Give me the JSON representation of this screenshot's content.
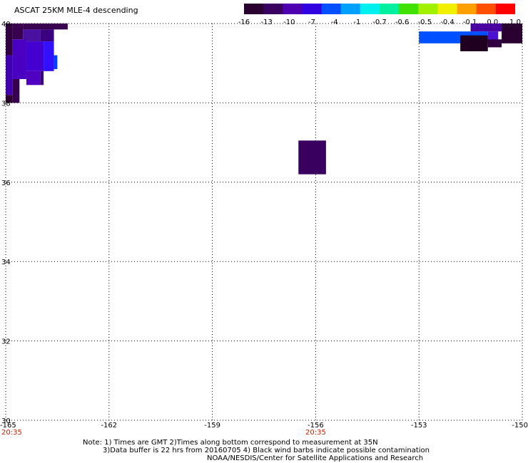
{
  "title": "ASCAT 25KM MLE-4 descending",
  "colorbar": {
    "labels": [
      "-16",
      "-13",
      "-10",
      "-7",
      "-4",
      "-1",
      "-0.7",
      "-0.6",
      "-0.5",
      "-0.4",
      "-0.1",
      "0.0",
      "1.0"
    ],
    "colors": [
      "#2a0030",
      "#3a0060",
      "#4e00b0",
      "#3000e0",
      "#0050ff",
      "#00a0ff",
      "#00f0f0",
      "#00f0a0",
      "#40e000",
      "#a0f000",
      "#f0f000",
      "#ffa000",
      "#ff5000",
      "#ff0000"
    ]
  },
  "map": {
    "lon_range": [
      -165,
      -150
    ],
    "lat_range": [
      30,
      40
    ],
    "lon_ticks": [
      "-165",
      "-162",
      "-159",
      "-156",
      "-153",
      "-150"
    ],
    "lat_ticks": [
      "40",
      "38",
      "36",
      "34",
      "32",
      "30"
    ],
    "time_labels": [
      {
        "text": "20:35",
        "lon": -165
      },
      {
        "text": "20:35",
        "lon": -156
      }
    ],
    "time_color": "#cc2200",
    "cells": [
      {
        "lon0": -164.5,
        "lon1": -163.2,
        "lat0": 39.85,
        "lat1": 40.0,
        "color": "#3a0050"
      },
      {
        "lon0": -164.8,
        "lon1": -164.5,
        "lat0": 39.6,
        "lat1": 40.0,
        "color": "#3a0050"
      },
      {
        "lon0": -164.5,
        "lon1": -164.0,
        "lat0": 39.55,
        "lat1": 39.85,
        "color": "#4a10a0"
      },
      {
        "lon0": -164.0,
        "lon1": -163.6,
        "lat0": 39.55,
        "lat1": 39.85,
        "color": "#3a0080"
      },
      {
        "lon0": -165.0,
        "lon1": -164.8,
        "lat0": 39.2,
        "lat1": 40.0,
        "color": "#300040"
      },
      {
        "lon0": -164.8,
        "lon1": -164.4,
        "lat0": 38.6,
        "lat1": 39.6,
        "color": "#4a00c0"
      },
      {
        "lon0": -164.4,
        "lon1": -163.9,
        "lat0": 38.8,
        "lat1": 39.55,
        "color": "#4400d0"
      },
      {
        "lon0": -163.9,
        "lon1": -163.6,
        "lat0": 38.8,
        "lat1": 39.55,
        "color": "#3010ff"
      },
      {
        "lon0": -163.6,
        "lon1": -163.5,
        "lat0": 38.85,
        "lat1": 39.2,
        "color": "#0040ff"
      },
      {
        "lon0": -165.0,
        "lon1": -164.8,
        "lat0": 38.2,
        "lat1": 39.2,
        "color": "#4000b0"
      },
      {
        "lon0": -164.4,
        "lon1": -164.0,
        "lat0": 38.45,
        "lat1": 38.8,
        "color": "#5000c0"
      },
      {
        "lon0": -164.0,
        "lon1": -163.9,
        "lat0": 38.45,
        "lat1": 38.8,
        "color": "#3a0080"
      },
      {
        "lon0": -164.8,
        "lon1": -164.6,
        "lat0": 38.0,
        "lat1": 38.6,
        "color": "#3a0050"
      },
      {
        "lon0": -165.0,
        "lon1": -164.8,
        "lat0": 38.0,
        "lat1": 38.2,
        "color": "#300030"
      },
      {
        "lon0": -156.5,
        "lon1": -155.7,
        "lat0": 36.2,
        "lat1": 37.05,
        "color": "#3a0060"
      },
      {
        "lon0": -153.0,
        "lon1": -151.0,
        "lat0": 39.5,
        "lat1": 39.8,
        "color": "#0050ff"
      },
      {
        "lon0": -151.0,
        "lon1": -150.7,
        "lat0": 39.5,
        "lat1": 39.8,
        "color": "#4a10d0"
      },
      {
        "lon0": -151.5,
        "lon1": -150.6,
        "lat0": 39.8,
        "lat1": 40.0,
        "color": "#4a00a0"
      },
      {
        "lon0": -150.6,
        "lon1": -150.0,
        "lat0": 39.5,
        "lat1": 40.0,
        "color": "#2a0030"
      },
      {
        "lon0": -151.8,
        "lon1": -151.0,
        "lat0": 39.3,
        "lat1": 39.7,
        "color": "#200020"
      },
      {
        "lon0": -151.0,
        "lon1": -150.6,
        "lat0": 39.4,
        "lat1": 39.6,
        "color": "#300040"
      }
    ]
  },
  "notes": [
    "Note: 1) Times are GMT 2)Times along bottom correspond to measurement at 35N",
    "3)Data buffer is 22 hrs from 20160705 4) Black wind barbs indicate possible contamination",
    "NOAA/NESDIS/Center for Satellite Applications and Research"
  ]
}
